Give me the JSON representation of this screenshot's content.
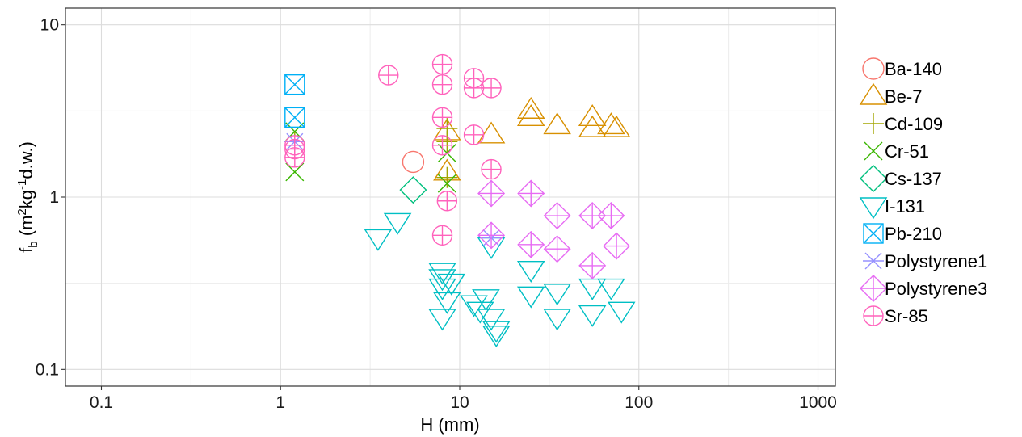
{
  "chart_data": {
    "type": "scatter",
    "title": "",
    "xlabel": "H (mm)",
    "ylabel_parts": [
      "f",
      "b",
      " (m",
      "2",
      "kg",
      "-1",
      "d.w.)"
    ],
    "x_scale": "log",
    "y_scale": "log",
    "xlim": [
      0.063,
      1250
    ],
    "ylim": [
      0.08,
      12.5
    ],
    "x_ticks": [
      0.1,
      1,
      10,
      100,
      1000
    ],
    "x_tick_labels": [
      "0.1",
      "1",
      "10",
      "100",
      "1000"
    ],
    "y_ticks": [
      0.1,
      1,
      10
    ],
    "y_tick_labels": [
      "0.1",
      "1",
      "10"
    ],
    "grid": true,
    "legend_position": "right",
    "series": [
      {
        "name": "Ba-140",
        "color": "#F8766D",
        "shape": "circle",
        "points": [
          [
            5.5,
            1.6
          ]
        ]
      },
      {
        "name": "Be-7",
        "color": "#D89000",
        "shape": "triangle-up",
        "points": [
          [
            8.5,
            1.4
          ],
          [
            8.5,
            2.4
          ],
          [
            15,
            2.3
          ],
          [
            25,
            2.9
          ],
          [
            25,
            3.2
          ],
          [
            35,
            2.6
          ],
          [
            55,
            2.5
          ],
          [
            55,
            2.9
          ],
          [
            70,
            2.6
          ],
          [
            75,
            2.5
          ]
        ]
      },
      {
        "name": "Cd-109",
        "color": "#A3A500",
        "shape": "plus",
        "points": [
          [
            1.2,
            2.1
          ],
          [
            8.5,
            1.3
          ],
          [
            8.5,
            2.1
          ],
          [
            8.5,
            2.5
          ]
        ]
      },
      {
        "name": "Cr-51",
        "color": "#39B600",
        "shape": "cross",
        "points": [
          [
            1.2,
            1.4
          ],
          [
            1.2,
            2.4
          ],
          [
            8.5,
            1.2
          ],
          [
            8.5,
            1.8
          ]
        ]
      },
      {
        "name": "Cs-137",
        "color": "#00BF7D",
        "shape": "diamond",
        "points": [
          [
            5.5,
            1.1
          ]
        ]
      },
      {
        "name": "I-131",
        "color": "#00BFC4",
        "shape": "triangle-down",
        "points": [
          [
            3.5,
            0.58
          ],
          [
            4.5,
            0.72
          ],
          [
            8,
            0.37
          ],
          [
            8,
            0.34
          ],
          [
            8,
            0.3
          ],
          [
            8.5,
            0.25
          ],
          [
            9,
            0.32
          ],
          [
            8,
            0.2
          ],
          [
            12,
            0.24
          ],
          [
            13,
            0.22
          ],
          [
            14,
            0.26
          ],
          [
            15,
            0.2
          ],
          [
            16,
            0.17
          ],
          [
            16,
            0.16
          ],
          [
            15,
            0.52
          ],
          [
            25,
            0.38
          ],
          [
            25,
            0.27
          ],
          [
            35,
            0.28
          ],
          [
            35,
            0.2
          ],
          [
            55,
            0.3
          ],
          [
            55,
            0.21
          ],
          [
            70,
            0.3
          ],
          [
            80,
            0.22
          ]
        ]
      },
      {
        "name": "Pb-210",
        "color": "#00B0F6",
        "shape": "square-cross",
        "points": [
          [
            1.2,
            4.5
          ],
          [
            1.2,
            2.9
          ]
        ]
      },
      {
        "name": "Polystyrene1",
        "color": "#9590FF",
        "shape": "asterisk",
        "points": [
          [
            1.2,
            2.1
          ],
          [
            15,
            0.58
          ]
        ]
      },
      {
        "name": "Polystyrene3",
        "color": "#E76BF3",
        "shape": "diamond-plus",
        "points": [
          [
            15,
            1.05
          ],
          [
            25,
            1.05
          ],
          [
            15,
            0.6
          ],
          [
            25,
            0.53
          ],
          [
            35,
            0.78
          ],
          [
            35,
            0.5
          ],
          [
            55,
            0.78
          ],
          [
            55,
            0.4
          ],
          [
            70,
            0.78
          ],
          [
            75,
            0.52
          ]
        ]
      },
      {
        "name": "Sr-85",
        "color": "#FF62BC",
        "shape": "circle-plus",
        "points": [
          [
            1.2,
            2.0
          ],
          [
            1.2,
            1.9
          ],
          [
            1.2,
            1.7
          ],
          [
            4,
            5.1
          ],
          [
            8,
            5.9
          ],
          [
            8,
            4.5
          ],
          [
            8,
            2.9
          ],
          [
            8,
            2.0
          ],
          [
            8.5,
            0.95
          ],
          [
            8,
            0.6
          ],
          [
            12,
            4.9
          ],
          [
            12,
            4.3
          ],
          [
            15,
            4.3
          ],
          [
            12,
            2.3
          ],
          [
            15,
            1.45
          ]
        ]
      }
    ]
  }
}
